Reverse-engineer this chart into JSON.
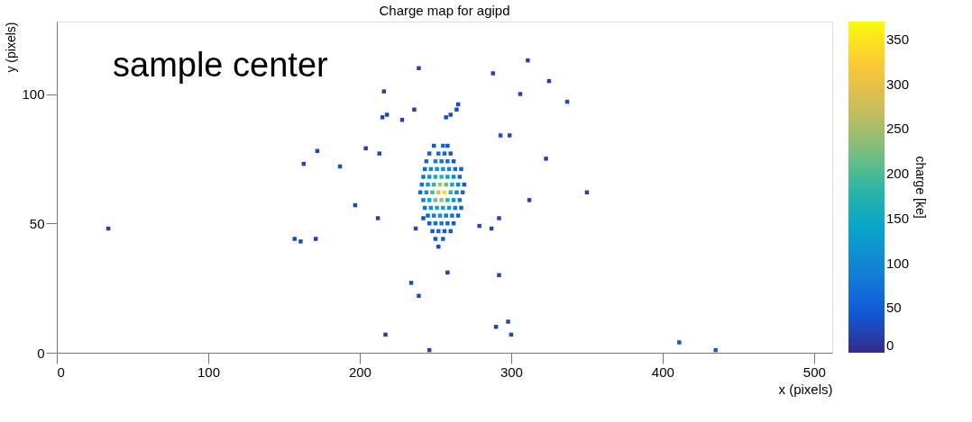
{
  "chart_data": {
    "type": "scatter",
    "title": "Charge map for agipd",
    "xlabel": "x (pixels)",
    "ylabel": "y (pixels)",
    "clabel": "charge [ke]",
    "annotations": [
      "sample center"
    ],
    "marker": "square",
    "xlim": [
      0,
      512
    ],
    "ylim": [
      0,
      128
    ],
    "xticks": [
      0,
      100,
      200,
      300,
      400,
      500
    ],
    "yticks": [
      0,
      50,
      100
    ],
    "clim": [
      0,
      370
    ],
    "cticks": [
      0,
      50,
      100,
      150,
      200,
      250,
      300,
      350
    ],
    "x": [
      34,
      157,
      161,
      171,
      163,
      172,
      187,
      197,
      212,
      216,
      218,
      215,
      239,
      228,
      236,
      213,
      204,
      257,
      260,
      264,
      265,
      288,
      311,
      325,
      306,
      337,
      293,
      299,
      323,
      350,
      312,
      292,
      287,
      279,
      292,
      258,
      234,
      239,
      298,
      300,
      290,
      217,
      246,
      411,
      435,
      242,
      237,
      249,
      255,
      258,
      246,
      252,
      256,
      260,
      244,
      250,
      254,
      258,
      262,
      243,
      247,
      251,
      255,
      259,
      263,
      267,
      242,
      246,
      250,
      254,
      258,
      262,
      266,
      241,
      245,
      249,
      253,
      257,
      261,
      265,
      269,
      240,
      244,
      248,
      252,
      256,
      260,
      264,
      268,
      242,
      246,
      250,
      254,
      258,
      262,
      266,
      243,
      247,
      251,
      255,
      259,
      263,
      267,
      245,
      249,
      253,
      257,
      261,
      265,
      246,
      250,
      254,
      258,
      262,
      248,
      252,
      256,
      260,
      250,
      255,
      252
    ],
    "values": [
      48,
      44,
      43,
      44,
      73,
      78,
      72,
      57,
      52,
      101,
      92,
      91,
      110,
      90,
      94,
      77,
      79,
      91,
      92,
      94,
      96,
      108,
      113,
      105,
      100,
      97,
      84,
      84,
      75,
      62,
      59,
      52,
      48,
      49,
      30,
      31,
      27,
      22,
      12,
      7,
      10,
      7,
      1,
      4,
      1,
      52,
      48,
      80,
      80,
      80,
      77,
      77,
      77,
      77,
      74,
      74,
      74,
      74,
      74,
      71,
      71,
      71,
      71,
      71,
      71,
      71,
      68,
      68,
      68,
      68,
      68,
      68,
      68,
      65,
      65,
      65,
      65,
      65,
      65,
      65,
      65,
      62,
      62,
      62,
      62,
      62,
      62,
      62,
      62,
      59,
      59,
      59,
      59,
      59,
      59,
      59,
      56,
      56,
      56,
      56,
      56,
      56,
      56,
      53,
      53,
      53,
      53,
      53,
      53,
      50,
      50,
      50,
      50,
      50,
      47,
      47,
      47,
      47,
      44,
      44,
      41
    ],
    "cvalues": [
      20,
      30,
      30,
      20,
      25,
      25,
      30,
      25,
      20,
      20,
      25,
      20,
      20,
      25,
      20,
      25,
      20,
      30,
      30,
      30,
      30,
      20,
      20,
      20,
      25,
      30,
      30,
      30,
      20,
      25,
      20,
      20,
      20,
      25,
      25,
      20,
      30,
      30,
      30,
      30,
      20,
      20,
      20,
      35,
      40,
      30,
      25,
      40,
      60,
      40,
      50,
      70,
      60,
      40,
      60,
      90,
      80,
      70,
      50,
      60,
      100,
      120,
      110,
      90,
      70,
      50,
      80,
      120,
      160,
      180,
      140,
      100,
      60,
      70,
      130,
      190,
      260,
      220,
      150,
      90,
      50,
      60,
      120,
      200,
      300,
      340,
      180,
      100,
      60,
      90,
      140,
      220,
      250,
      170,
      110,
      70,
      70,
      110,
      150,
      140,
      120,
      80,
      50,
      60,
      90,
      100,
      80,
      70,
      50,
      50,
      70,
      80,
      60,
      40,
      40,
      60,
      50,
      40,
      40,
      50,
      30
    ]
  }
}
